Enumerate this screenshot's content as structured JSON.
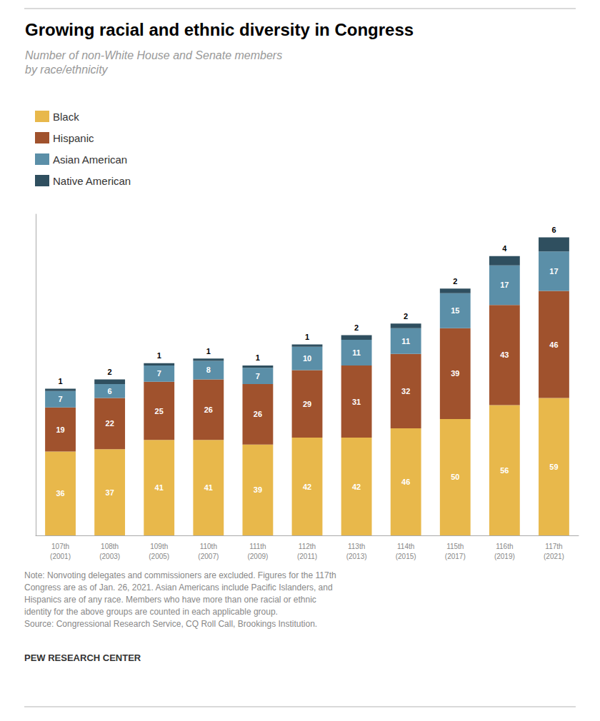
{
  "chart_data": {
    "type": "bar",
    "stacked": true,
    "title": "Growing racial and ethnic diversity in Congress",
    "subtitle": "Number of non-White House and Senate members\nby race/ethnicity",
    "categories": [
      "107th\n(2001)",
      "108th\n(2003)",
      "109th\n(2005)",
      "110th\n(2007)",
      "111th\n(2009)",
      "112th\n(2011)",
      "113th\n(2013)",
      "114th\n(2015)",
      "115th\n(2017)",
      "116th\n(2019)",
      "117th\n(2021)"
    ],
    "series": [
      {
        "name": "Black",
        "color": "#E8B84B",
        "values": [
          36,
          37,
          41,
          41,
          39,
          42,
          42,
          46,
          50,
          56,
          59
        ]
      },
      {
        "name": "Hispanic",
        "color": "#A0522D",
        "values": [
          19,
          22,
          25,
          26,
          26,
          29,
          31,
          32,
          39,
          43,
          46
        ]
      },
      {
        "name": "Asian American",
        "color": "#5B8FA8",
        "values": [
          7,
          6,
          7,
          8,
          7,
          10,
          11,
          11,
          15,
          17,
          17
        ]
      },
      {
        "name": "Native American",
        "color": "#2F4F5F",
        "values": [
          1,
          2,
          1,
          1,
          1,
          1,
          2,
          2,
          2,
          4,
          6
        ]
      }
    ],
    "ylim": [
      0,
      138
    ],
    "tick_labels": "x",
    "grid": false,
    "legend": "upper left",
    "data_labels": true,
    "annotations": [
      "Note: Nonvoting delegates and commissioners are excluded. Figures for the 117th",
      "Congress are as of Jan. 26, 2021. Asian Americans include Pacific Islanders, and",
      "Hispanics are of any race. Members who have more than one racial or ethnic",
      "identity for the above groups are counted in each applicable group.",
      "Source: Congressional Research Service, CQ Roll Call, Brookings Institution.",
      "PEW RESEARCH CENTER"
    ]
  }
}
